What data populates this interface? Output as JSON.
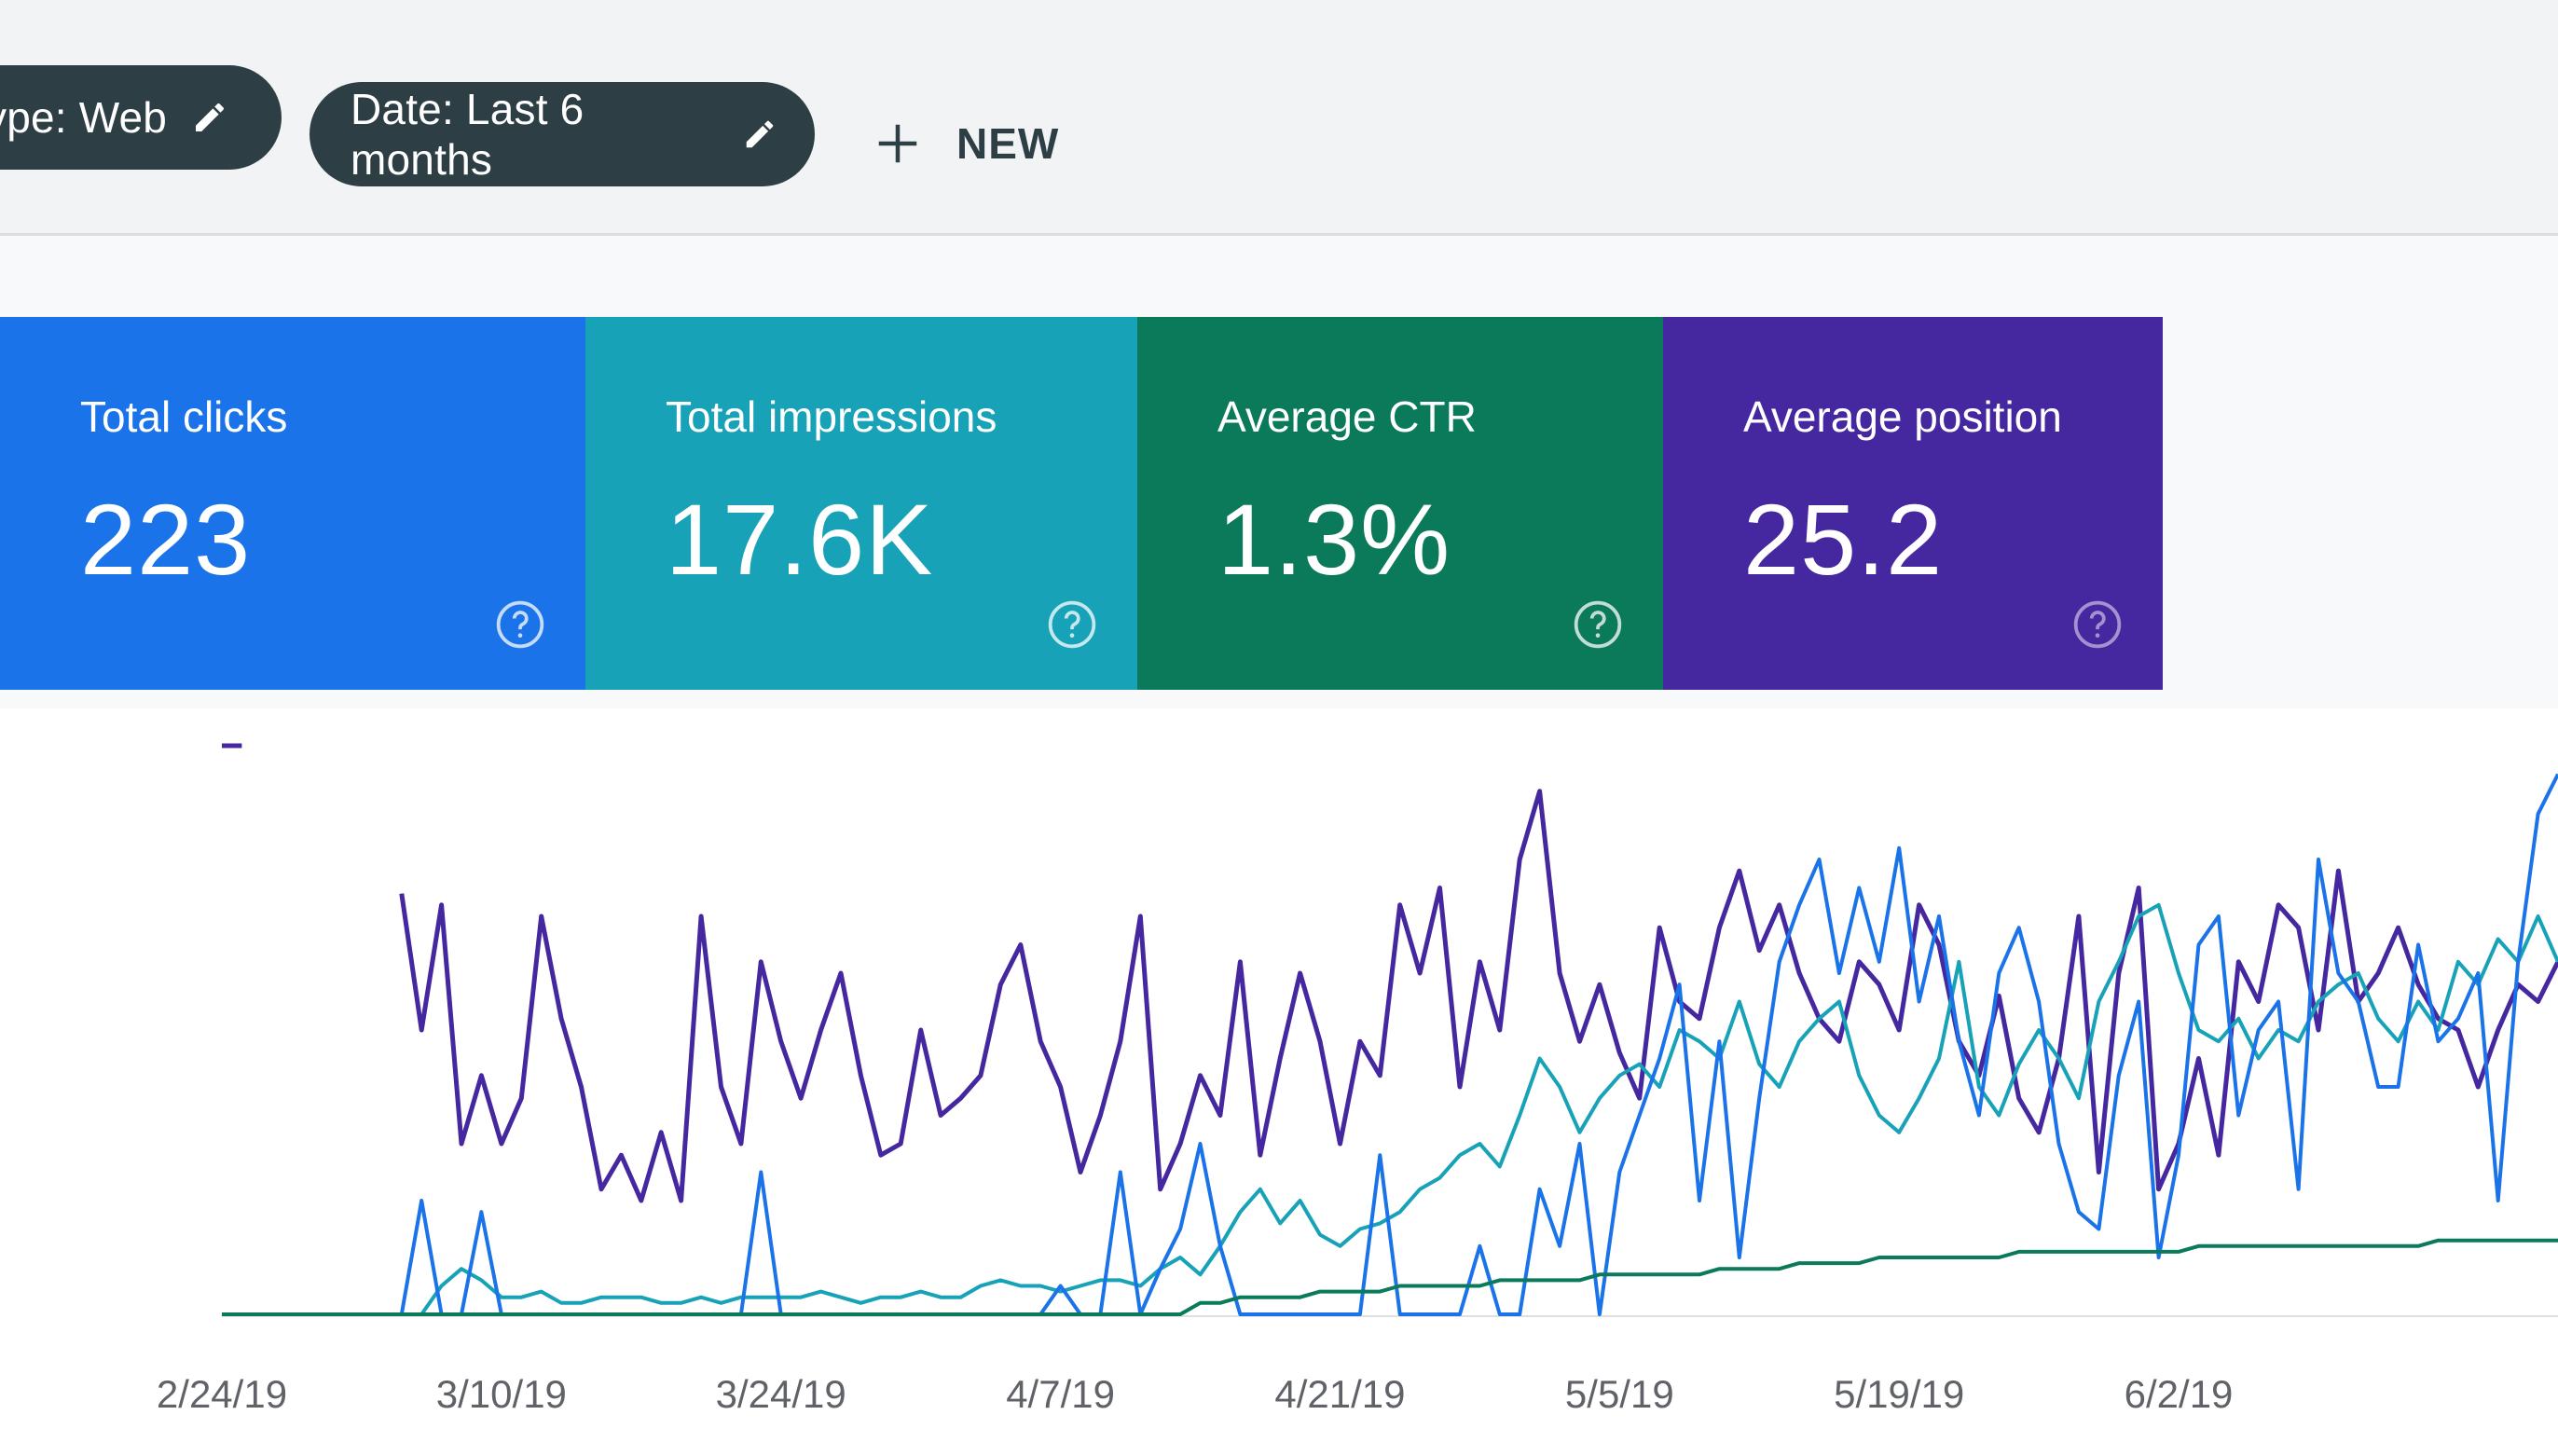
{
  "filters": {
    "type_chip": "ype: Web",
    "date_chip": "Date: Last 6 months",
    "new_label": "NEW"
  },
  "metrics": [
    {
      "label": "Total clicks",
      "value": "223",
      "color": "#1a73e8"
    },
    {
      "label": "Total impressions",
      "value": "17.6K",
      "color": "#17a2b8"
    },
    {
      "label": "Average CTR",
      "value": "1.3%",
      "color": "#0b7a5a"
    },
    {
      "label": "Average position",
      "value": "25.2",
      "color": "#4527a0"
    }
  ],
  "icons": {
    "edit": "pencil-icon",
    "add": "plus-icon",
    "help": "help-circle-icon"
  },
  "chart_data": {
    "type": "line",
    "x_tick_labels": [
      "2/24/19",
      "3/10/19",
      "3/24/19",
      "4/7/19",
      "4/21/19",
      "5/5/19",
      "5/19/19",
      "6/2/19"
    ],
    "series_colors": {
      "clicks": "#1a73e8",
      "impressions": "#17a2b8",
      "ctr": "#0b7a5a",
      "position": "#4527a0"
    },
    "days": 118,
    "series": [
      {
        "key": "position",
        "values": [
          100,
          100,
          null,
          null,
          null,
          null,
          88,
          null,
          null,
          74,
          50,
          72,
          30,
          42,
          30,
          38,
          70,
          52,
          40,
          22,
          28,
          20,
          32,
          20,
          70,
          40,
          30,
          62,
          48,
          38,
          50,
          60,
          42,
          28,
          30,
          50,
          35,
          38,
          42,
          58,
          65,
          48,
          40,
          25,
          35,
          48,
          70,
          22,
          30,
          42,
          35,
          62,
          28,
          45,
          60,
          48,
          30,
          48,
          42,
          72,
          60,
          75,
          40,
          62,
          50,
          80,
          92,
          60,
          48,
          58,
          46,
          38,
          68,
          55,
          52,
          68,
          78,
          64,
          72,
          60,
          52,
          48,
          62,
          58,
          50,
          72,
          65,
          48,
          42,
          56,
          38,
          32,
          45,
          70,
          25,
          60,
          75,
          22,
          30,
          45,
          28,
          62,
          55,
          72,
          68,
          50,
          78,
          55,
          60,
          68,
          58,
          52,
          50,
          40,
          50,
          58,
          55,
          62
        ]
      },
      {
        "key": "impressions",
        "values": [
          0,
          0,
          0,
          0,
          0,
          0,
          0,
          0,
          0,
          0,
          0,
          5,
          8,
          6,
          3,
          3,
          4,
          2,
          2,
          3,
          3,
          3,
          2,
          2,
          3,
          2,
          3,
          3,
          3,
          3,
          4,
          3,
          2,
          3,
          3,
          4,
          3,
          3,
          5,
          6,
          5,
          5,
          4,
          5,
          6,
          6,
          5,
          8,
          10,
          7,
          12,
          18,
          22,
          16,
          20,
          14,
          12,
          15,
          16,
          18,
          22,
          24,
          28,
          30,
          26,
          35,
          45,
          40,
          32,
          38,
          42,
          44,
          40,
          50,
          48,
          45,
          55,
          44,
          40,
          48,
          52,
          55,
          42,
          35,
          32,
          38,
          45,
          62,
          40,
          35,
          44,
          50,
          45,
          38,
          55,
          62,
          70,
          72,
          60,
          50,
          48,
          52,
          45,
          50,
          48,
          55,
          58,
          60,
          52,
          48,
          55,
          50,
          62,
          58,
          66,
          62,
          70,
          62
        ]
      },
      {
        "key": "clicks",
        "values": [
          0,
          0,
          0,
          0,
          0,
          0,
          0,
          0,
          0,
          0,
          20,
          0,
          0,
          18,
          0,
          0,
          0,
          0,
          0,
          0,
          0,
          0,
          0,
          0,
          0,
          0,
          0,
          25,
          0,
          0,
          0,
          0,
          0,
          0,
          0,
          0,
          0,
          0,
          0,
          0,
          0,
          0,
          5,
          0,
          0,
          25,
          0,
          8,
          15,
          30,
          12,
          0,
          0,
          0,
          0,
          0,
          0,
          0,
          28,
          0,
          0,
          0,
          0,
          12,
          0,
          0,
          22,
          12,
          30,
          0,
          25,
          35,
          45,
          58,
          20,
          48,
          10,
          38,
          62,
          72,
          80,
          60,
          75,
          62,
          82,
          55,
          70,
          48,
          35,
          60,
          68,
          55,
          30,
          18,
          15,
          42,
          55,
          10,
          28,
          65,
          70,
          35,
          50,
          55,
          22,
          80,
          60,
          55,
          40,
          40,
          65,
          48,
          52,
          60,
          20,
          62,
          88,
          95
        ]
      },
      {
        "key": "ctr",
        "values": [
          0,
          0,
          0,
          0,
          0,
          0,
          0,
          0,
          0,
          0,
          0,
          0,
          0,
          0,
          0,
          0,
          0,
          0,
          0,
          0,
          0,
          0,
          0,
          0,
          0,
          0,
          0,
          0,
          0,
          0,
          0,
          0,
          0,
          0,
          0,
          0,
          0,
          0,
          0,
          0,
          0,
          0,
          0,
          0,
          0,
          0,
          0,
          0,
          0,
          2,
          2,
          3,
          3,
          3,
          3,
          4,
          4,
          4,
          4,
          5,
          5,
          5,
          5,
          5,
          6,
          6,
          6,
          6,
          6,
          7,
          7,
          7,
          7,
          7,
          7,
          8,
          8,
          8,
          8,
          9,
          9,
          9,
          9,
          10,
          10,
          10,
          10,
          10,
          10,
          10,
          11,
          11,
          11,
          11,
          11,
          11,
          11,
          11,
          11,
          12,
          12,
          12,
          12,
          12,
          12,
          12,
          12,
          12,
          12,
          12,
          12,
          13,
          13,
          13,
          13,
          13,
          13,
          13
        ]
      }
    ]
  }
}
